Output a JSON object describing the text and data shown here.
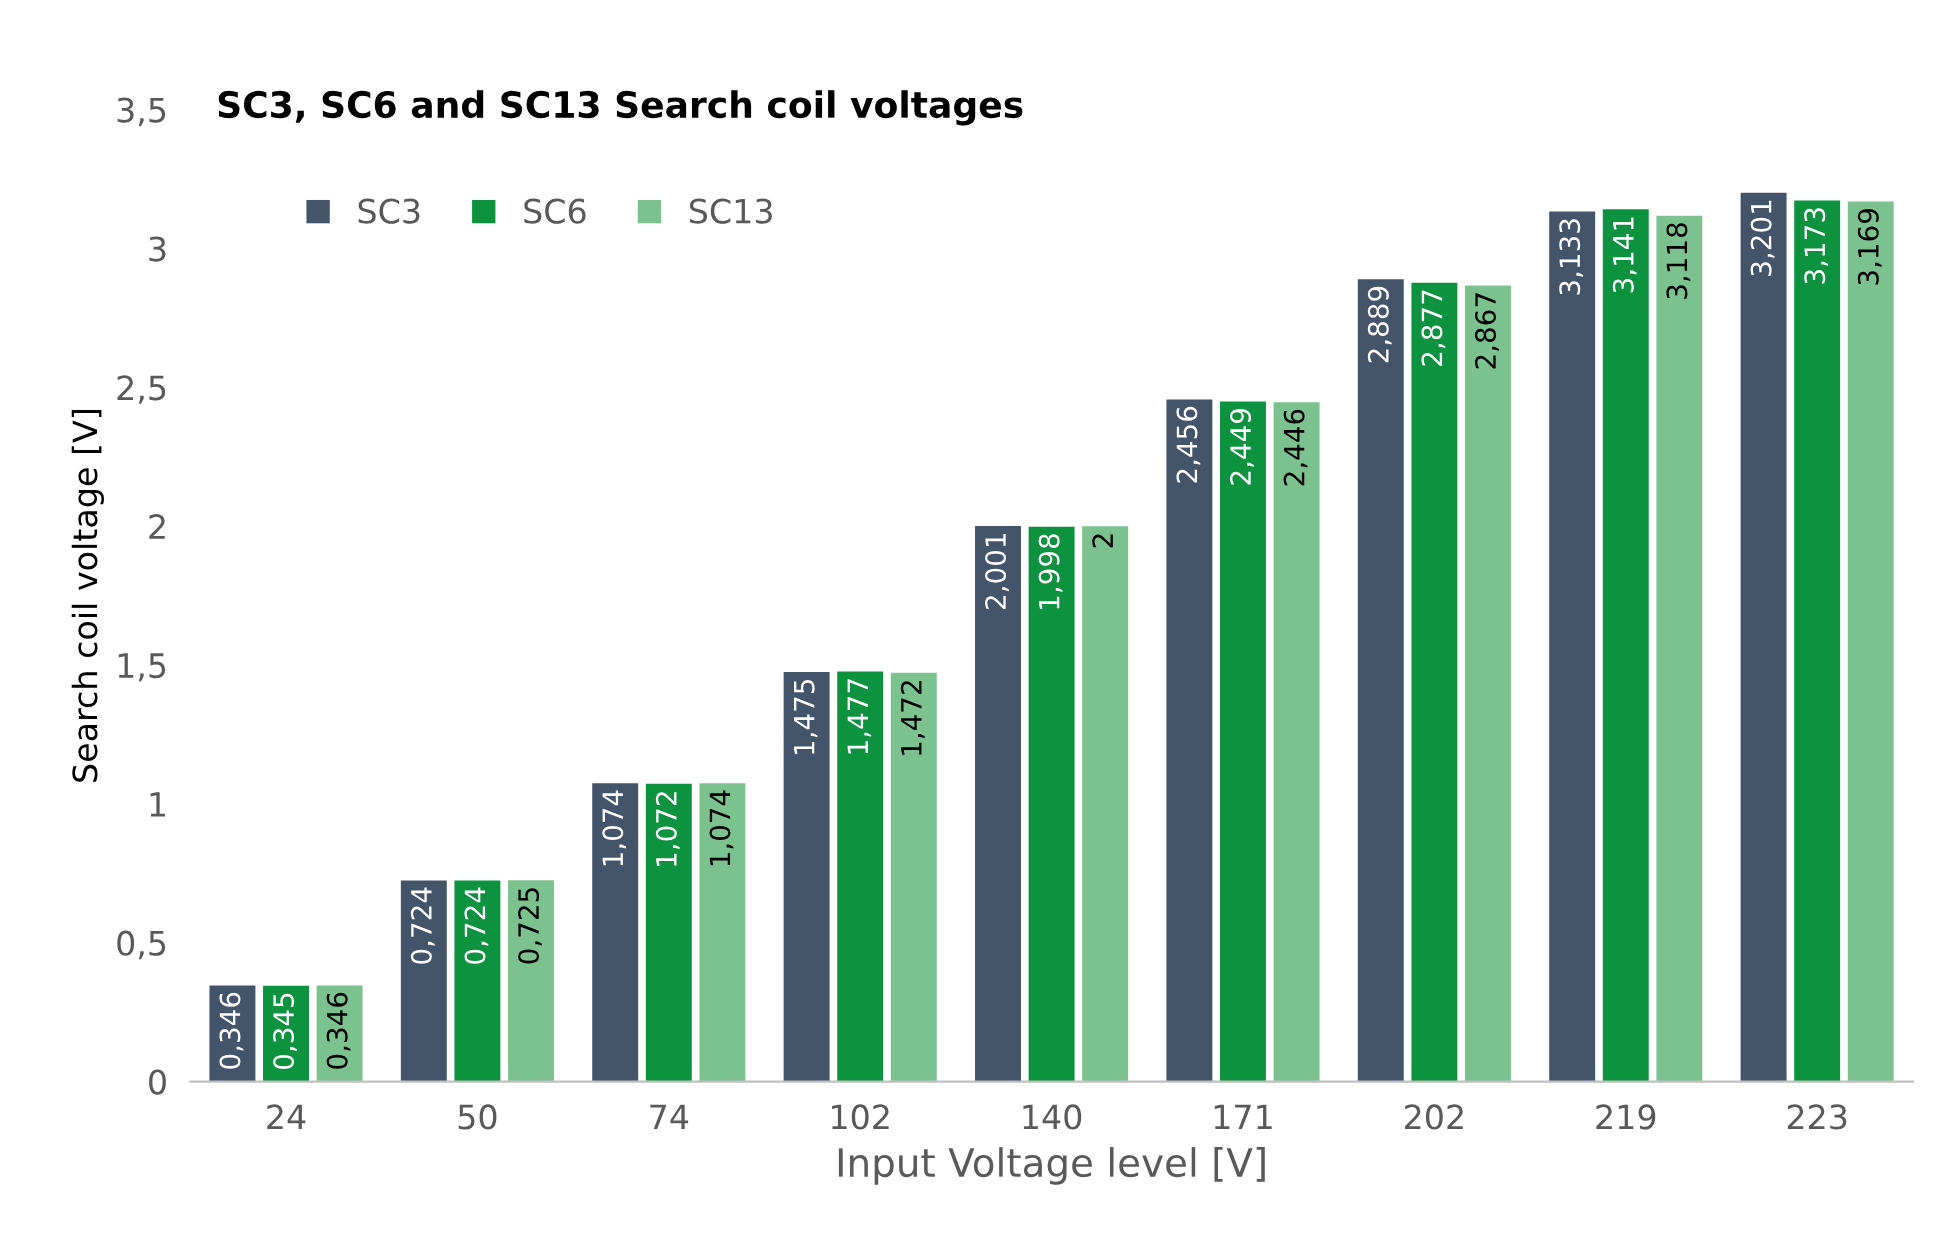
{
  "chart_data": {
    "type": "bar",
    "title": "SC3, SC6 and SC13 Search coil voltages",
    "xlabel": "Input Voltage level [V]",
    "ylabel": "Search coil voltage [V]",
    "categories": [
      "24",
      "50",
      "74",
      "102",
      "140",
      "171",
      "202",
      "219",
      "223"
    ],
    "series": [
      {
        "name": "SC3",
        "color": "#44546a",
        "values": [
          0.346,
          0.724,
          1.074,
          1.475,
          2.001,
          2.456,
          2.889,
          3.133,
          3.201
        ],
        "value_labels": [
          "0,346",
          "0,724",
          "1,074",
          "1,475",
          "2,001",
          "2,456",
          "2,889",
          "3,133",
          "3,201"
        ]
      },
      {
        "name": "SC6",
        "color": "#0d9340",
        "values": [
          0.345,
          0.724,
          1.072,
          1.477,
          1.998,
          2.449,
          2.877,
          3.141,
          3.173
        ],
        "value_labels": [
          "0,345",
          "0,724",
          "1,072",
          "1,477",
          "1,998",
          "2,449",
          "2,877",
          "3,141",
          "3,173"
        ]
      },
      {
        "name": "SC13",
        "color": "#7cc28f",
        "values": [
          0.346,
          0.725,
          1.074,
          1.472,
          2,
          2.446,
          2.867,
          3.118,
          3.169
        ],
        "value_labels": [
          "0,346",
          "0,725",
          "1,074",
          "1,472",
          "2",
          "2,446",
          "2,867",
          "3,118",
          "3,169"
        ]
      }
    ],
    "ylim": [
      0,
      3.5
    ],
    "yticks": [
      0,
      {
        "value": 0.5,
        "label": "0,5"
      },
      1,
      {
        "value": 1.5,
        "label": "1,5"
      },
      2,
      {
        "value": 2.5,
        "label": "2,5"
      },
      3,
      {
        "value": 3.5,
        "label": "3,5"
      }
    ],
    "grid": false,
    "legend": "top left"
  }
}
